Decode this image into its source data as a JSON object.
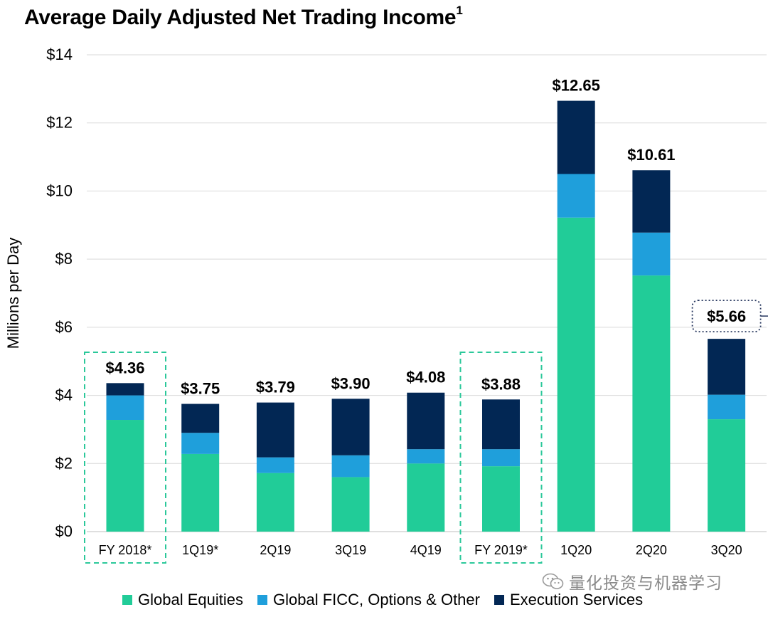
{
  "title": "Average Daily Adjusted Net Trading Income",
  "title_superscript": "1",
  "colors": {
    "global_equities": "#21CC98",
    "global_ficc": "#1F9FDB",
    "execution_services": "#022754",
    "highlight_box": "#2BC89A",
    "callout_box": "#24345C",
    "gridline": "#d9d9d9"
  },
  "watermark": "量化投资与机器学习",
  "chart_data": {
    "type": "bar",
    "stacked": true,
    "title": "Average Daily Adjusted Net Trading Income",
    "xlabel": "",
    "ylabel": "Millions per Day",
    "ylim": [
      0,
      14
    ],
    "yticks": [
      0,
      2,
      4,
      6,
      8,
      10,
      12,
      14
    ],
    "ytick_labels": [
      "$0",
      "$2",
      "$4",
      "$6",
      "$8",
      "$10",
      "$12",
      "$14"
    ],
    "grid": true,
    "legend_position": "bottom",
    "categories": [
      "FY 2018*",
      "1Q19*",
      "2Q19",
      "3Q19",
      "4Q19",
      "FY 2019*",
      "1Q20",
      "2Q20",
      "3Q20"
    ],
    "series": [
      {
        "name": "Global Equities",
        "values": [
          3.28,
          2.28,
          1.72,
          1.6,
          2.0,
          1.92,
          9.22,
          7.52,
          3.3
        ]
      },
      {
        "name": "Global FICC, Options & Other",
        "values": [
          0.72,
          0.62,
          0.46,
          0.64,
          0.42,
          0.5,
          1.28,
          1.26,
          0.72
        ]
      },
      {
        "name": "Execution Services",
        "values": [
          0.36,
          0.85,
          1.61,
          1.66,
          1.66,
          1.46,
          2.15,
          1.83,
          1.64
        ]
      }
    ],
    "totals": [
      4.36,
      3.75,
      3.79,
      3.9,
      4.08,
      3.88,
      12.65,
      10.61,
      5.66
    ],
    "total_labels": [
      "$4.36",
      "$3.75",
      "$3.79",
      "$3.90",
      "$4.08",
      "$3.88",
      "$12.65",
      "$10.61",
      "$5.66"
    ],
    "highlighted_categories": [
      "FY 2018*",
      "FY 2019*"
    ],
    "callout_category": "3Q20"
  }
}
